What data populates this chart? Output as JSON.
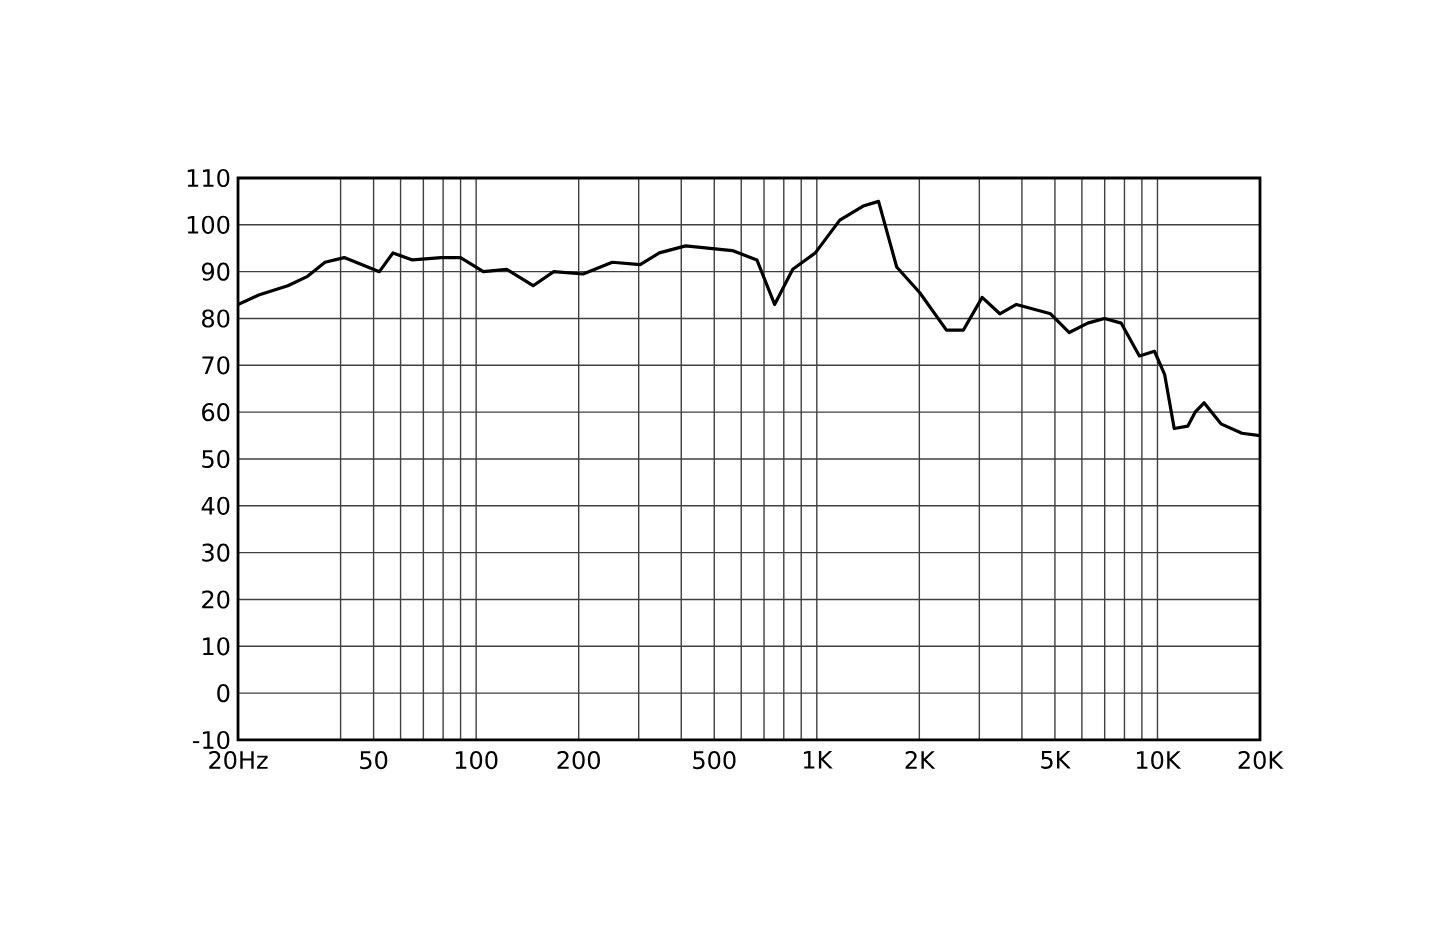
{
  "chart_data": {
    "type": "line",
    "log": "x",
    "grid": true,
    "xlim": [
      20,
      20000
    ],
    "ylim": [
      -10,
      110
    ],
    "xticks": [
      {
        "value": 20,
        "label": "20Hz"
      },
      {
        "value": 40,
        "label": null
      },
      50,
      {
        "value": 60,
        "label": null
      },
      {
        "value": 70,
        "label": null
      },
      {
        "value": 80,
        "label": null
      },
      {
        "value": 90,
        "label": null
      },
      100,
      200,
      {
        "value": 300,
        "label": null
      },
      {
        "value": 400,
        "label": null
      },
      500,
      {
        "value": 600,
        "label": null
      },
      {
        "value": 700,
        "label": null
      },
      {
        "value": 800,
        "label": null
      },
      {
        "value": 900,
        "label": null
      },
      {
        "value": 1000,
        "label": "1K"
      },
      {
        "value": 2000,
        "label": "2K"
      },
      {
        "value": 3000,
        "label": null
      },
      {
        "value": 4000,
        "label": null
      },
      {
        "value": 5000,
        "label": "5K"
      },
      {
        "value": 6000,
        "label": null
      },
      {
        "value": 7000,
        "label": null
      },
      {
        "value": 8000,
        "label": null
      },
      {
        "value": 9000,
        "label": null
      },
      {
        "value": 10000,
        "label": "10K"
      },
      {
        "value": 20000,
        "label": "20K"
      }
    ],
    "yticks": [
      -10,
      0,
      10,
      20,
      30,
      40,
      50,
      60,
      70,
      80,
      90,
      100,
      110
    ],
    "x": [
      20,
      23,
      28,
      32,
      36,
      41,
      52,
      57,
      65,
      79,
      90,
      105,
      123,
      147,
      169,
      206,
      251,
      303,
      345,
      412,
      565,
      667,
      752,
      850,
      990,
      1168,
      1368,
      1518,
      1716,
      2006,
      2402,
      2691,
      3058,
      3446,
      3855,
      4856,
      5510,
      6240,
      6990,
      7830,
      8850,
      9800,
      10500,
      11200,
      12270,
      12900,
      13700,
      15360,
      17700,
      20000
    ],
    "series": [
      {
        "color": "#000000",
        "values": [
          83,
          85,
          87,
          89,
          92,
          93,
          90,
          94,
          92.5,
          93,
          93,
          90,
          90.5,
          87,
          90,
          89.5,
          92,
          91.5,
          94,
          95.5,
          94.5,
          92.5,
          83,
          90.5,
          94,
          101,
          104,
          105,
          91,
          85.5,
          77.5,
          77.5,
          84.5,
          81,
          83,
          81,
          77,
          79,
          80,
          79,
          72,
          73,
          68,
          56.5,
          57,
          60,
          62,
          57.5,
          55.5,
          55
        ]
      }
    ]
  }
}
